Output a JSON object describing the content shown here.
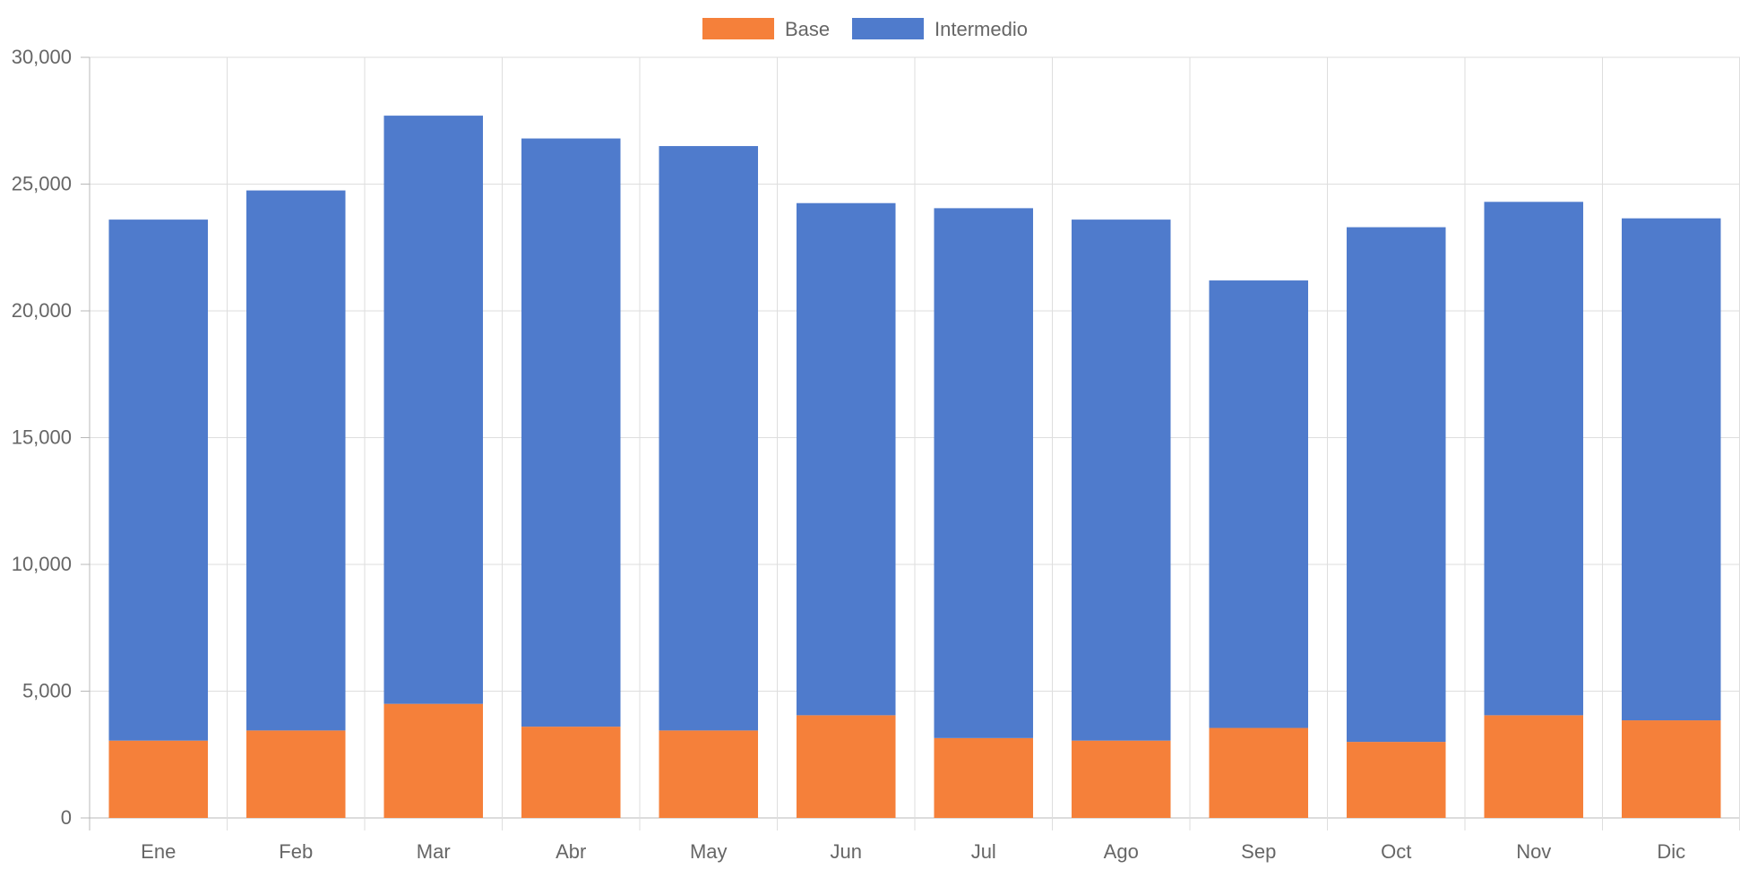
{
  "colors": {
    "base": "#f5803a",
    "intermedio": "#4f7bcc",
    "grid": "#dedede",
    "axis": "#b8b8b8",
    "text": "#666666"
  },
  "chart_data": {
    "type": "bar",
    "stacked": true,
    "title": "",
    "xlabel": "",
    "ylabel": "",
    "ylim": [
      0,
      30000
    ],
    "yticks": [
      "0",
      "5,000",
      "10,000",
      "15,000",
      "20,000",
      "25,000",
      "30,000"
    ],
    "categories": [
      "Ene",
      "Feb",
      "Mar",
      "Abr",
      "May",
      "Jun",
      "Jul",
      "Ago",
      "Sep",
      "Oct",
      "Nov",
      "Dic"
    ],
    "legend_position": "top-center",
    "grid": true,
    "series": [
      {
        "name": "Base",
        "color": "#f5803a",
        "values": [
          3050,
          3450,
          4500,
          3600,
          3450,
          4050,
          3150,
          3050,
          3550,
          3000,
          4050,
          3850
        ]
      },
      {
        "name": "Intermedio",
        "color": "#4f7bcc",
        "values": [
          20550,
          21300,
          23200,
          23200,
          23050,
          20200,
          20900,
          20550,
          17650,
          20300,
          20250,
          19800
        ]
      }
    ]
  }
}
